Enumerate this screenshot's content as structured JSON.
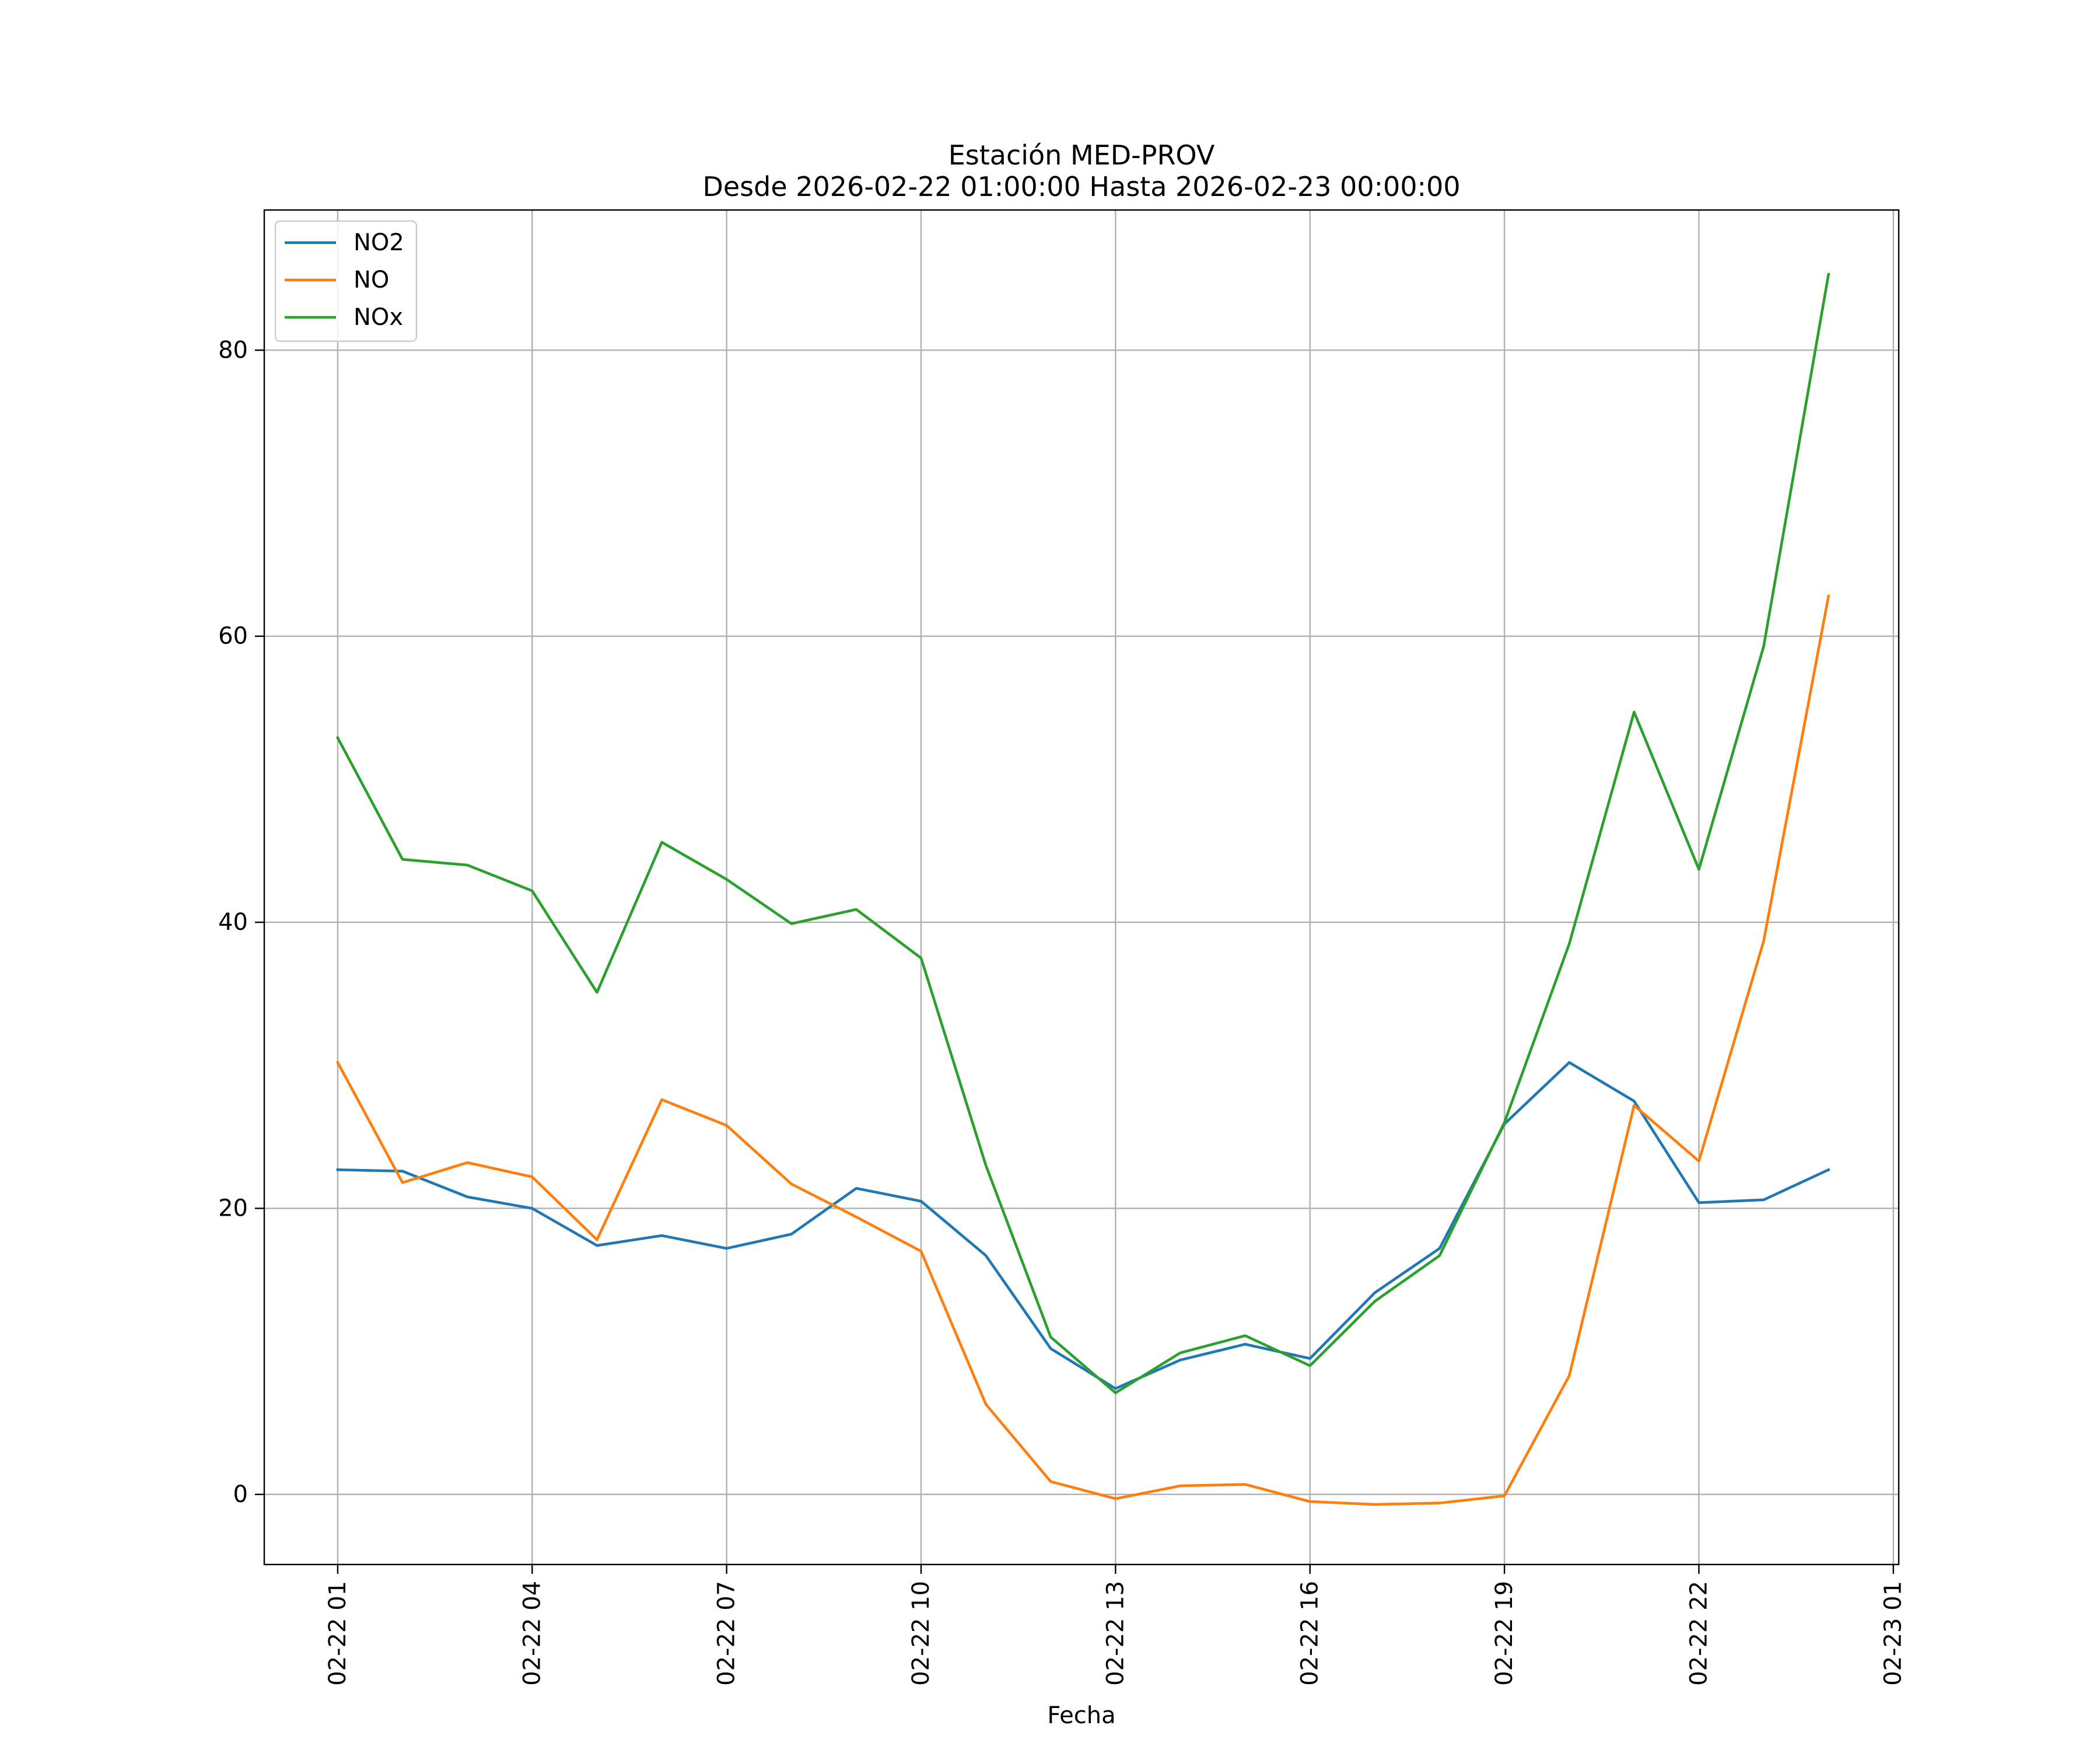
{
  "chart_data": {
    "type": "line",
    "title": [
      "Estación MED-PROV",
      "Desde 2026-02-22 01:00:00 Hasta 2026-02-23 00:00:00"
    ],
    "xlabel": "Fecha",
    "ylabel": "",
    "x": [
      "2026-02-22 01:00",
      "2026-02-22 02:00",
      "2026-02-22 03:00",
      "2026-02-22 04:00",
      "2026-02-22 05:00",
      "2026-02-22 06:00",
      "2026-02-22 07:00",
      "2026-02-22 08:00",
      "2026-02-22 09:00",
      "2026-02-22 10:00",
      "2026-02-22 11:00",
      "2026-02-22 12:00",
      "2026-02-22 13:00",
      "2026-02-22 14:00",
      "2026-02-22 15:00",
      "2026-02-22 16:00",
      "2026-02-22 17:00",
      "2026-02-22 18:00",
      "2026-02-22 19:00",
      "2026-02-22 20:00",
      "2026-02-22 21:00",
      "2026-02-22 22:00",
      "2026-02-22 23:00",
      "2026-02-23 00:00"
    ],
    "x_ticks": [
      "2026-02-22 01:00",
      "2026-02-22 04:00",
      "2026-02-22 07:00",
      "2026-02-22 10:00",
      "2026-02-22 13:00",
      "2026-02-22 16:00",
      "2026-02-22 19:00",
      "2026-02-22 22:00",
      "2026-02-23 01:00"
    ],
    "x_tick_labels": [
      "02-22 01",
      "02-22 04",
      "02-22 07",
      "02-22 10",
      "02-22 13",
      "02-22 16",
      "02-22 19",
      "02-22 22",
      "02-23 01"
    ],
    "xlim": [
      "2026-02-21 23:52",
      "2026-02-23 01:05"
    ],
    "y_ticks": [
      0,
      20,
      40,
      60,
      80
    ],
    "ylim": [
      -4.9,
      89.8
    ],
    "grid": true,
    "legend_position": "top-left",
    "series": [
      {
        "name": "NO2",
        "color": "#1f77b4",
        "values": [
          22.7,
          22.6,
          20.8,
          20.0,
          17.4,
          18.1,
          17.2,
          18.2,
          21.4,
          20.5,
          16.7,
          10.2,
          7.4,
          9.4,
          10.5,
          9.5,
          14.1,
          17.2,
          25.9,
          30.2,
          27.5,
          20.4,
          20.6,
          22.7
        ]
      },
      {
        "name": "NO",
        "color": "#ff7f0e",
        "values": [
          30.2,
          21.8,
          23.2,
          22.2,
          17.8,
          27.6,
          25.8,
          21.7,
          19.4,
          17.0,
          6.3,
          0.9,
          -0.3,
          0.6,
          0.7,
          -0.5,
          -0.7,
          -0.6,
          -0.1,
          8.3,
          27.2,
          23.3,
          38.7,
          62.8
        ]
      },
      {
        "name": "NOx",
        "color": "#2ca02c",
        "values": [
          52.9,
          44.4,
          44.0,
          42.2,
          35.1,
          45.6,
          43.0,
          39.9,
          40.9,
          37.5,
          23.0,
          11.0,
          7.1,
          9.9,
          11.1,
          9.0,
          13.5,
          16.7,
          26.0,
          38.5,
          54.7,
          43.7,
          59.3,
          85.3
        ]
      }
    ]
  }
}
